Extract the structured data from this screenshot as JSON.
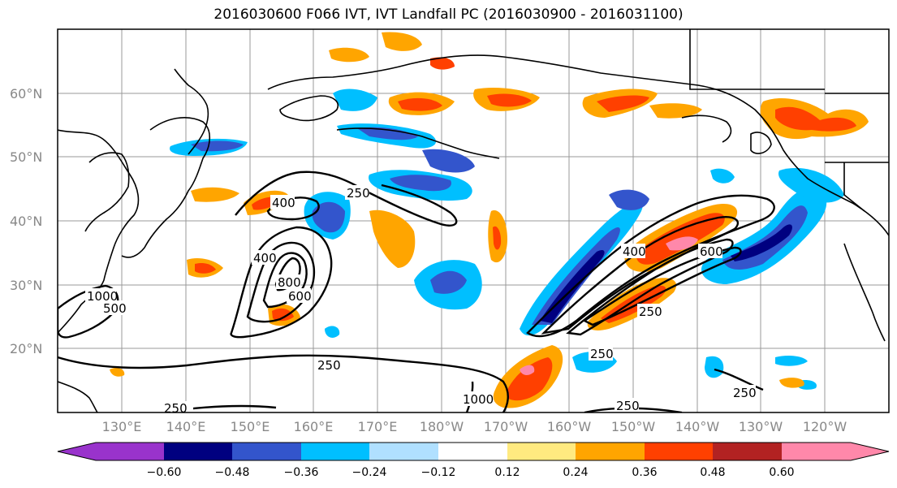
{
  "title": "2016030600 F066 IVT, IVT Landfall PC (2016030900 - 2016031100)",
  "lat_labels": [
    "60°N",
    "50°N",
    "40°N",
    "30°N",
    "20°N"
  ],
  "lon_labels": [
    "130°E",
    "140°E",
    "150°E",
    "160°E",
    "170°E",
    "180°W",
    "170°W",
    "160°W",
    "150°W",
    "140°W",
    "130°W",
    "120°W"
  ],
  "contour_labels": [
    "400",
    "250",
    "400",
    "800",
    "600",
    "1000",
    "500",
    "250",
    "400",
    "600",
    "250",
    "250",
    "250",
    "250",
    "1000",
    "250"
  ],
  "colorbar": {
    "colors": [
      "#9933cc",
      "#000080",
      "#3355cc",
      "#00bfff",
      "#b0e0ff",
      "#ffffff",
      "#ffea80",
      "#ffa500",
      "#ff4000",
      "#b22222",
      "#ff88aa"
    ],
    "tick_labels": [
      "−0.60",
      "−0.48",
      "−0.36",
      "−0.24",
      "−0.12",
      "0.12",
      "0.24",
      "0.36",
      "0.48",
      "0.60"
    ]
  }
}
